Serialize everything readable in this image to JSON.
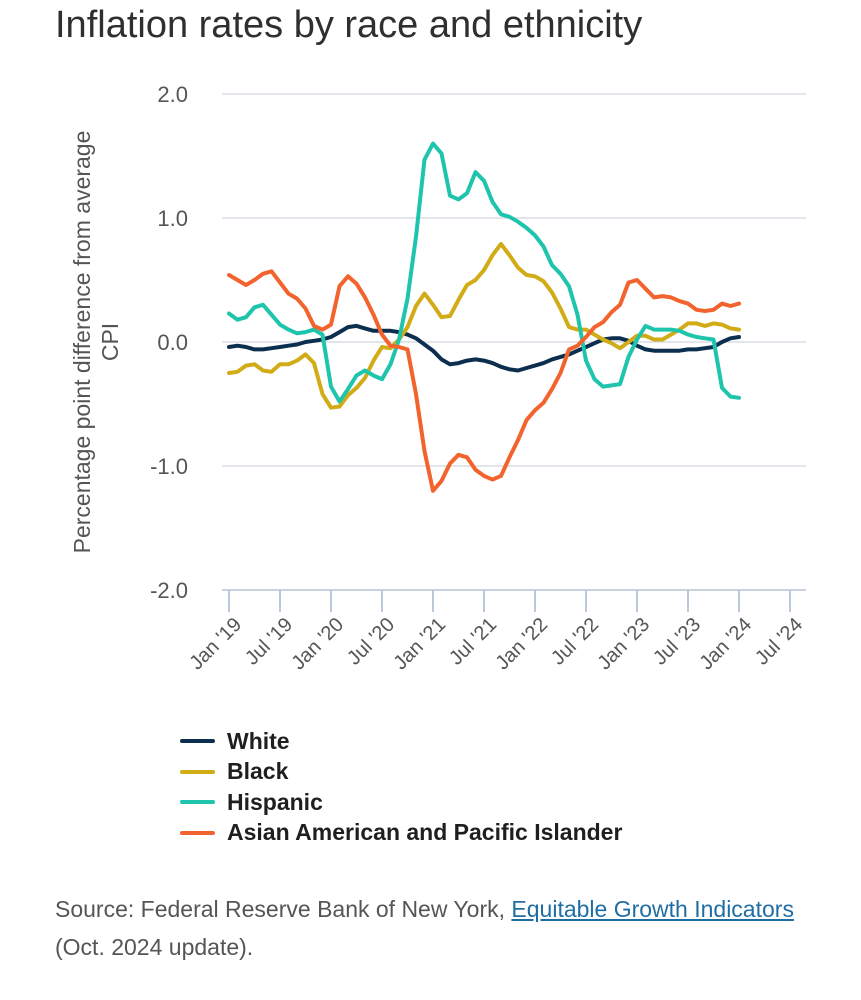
{
  "title": "Inflation rates by race and ethnicity",
  "chart_data": {
    "type": "line",
    "title": "Inflation rates by race and ethnicity",
    "xlabel": "",
    "ylabel": "Percentage point difference from average CPI",
    "ylim": [
      -2.0,
      2.0
    ],
    "yticks": [
      2.0,
      1.0,
      0.0,
      -1.0,
      -2.0
    ],
    "ytick_labels": [
      "2.0",
      "1.0",
      "0.0",
      "-1.0",
      "-2.0"
    ],
    "xticks": [
      "Jan '19",
      "Jul '19",
      "Jan '20",
      "Jul '20",
      "Jan '21",
      "Jul '21",
      "Jan '22",
      "Jul '22",
      "Jan '23",
      "Jul '23",
      "Jan '24",
      "Jul '24"
    ],
    "x_start": "Jan 2019",
    "x_end": "Sep 2024",
    "x_step": "monthly",
    "grid": true,
    "series": [
      {
        "name": "White",
        "color": "#0d2f4f",
        "values": [
          -0.04,
          -0.03,
          -0.04,
          -0.06,
          -0.06,
          -0.05,
          -0.04,
          -0.03,
          -0.02,
          0.0,
          0.01,
          0.02,
          0.04,
          0.08,
          0.12,
          0.13,
          0.11,
          0.09,
          0.09,
          0.09,
          0.08,
          0.06,
          0.03,
          -0.02,
          -0.07,
          -0.14,
          -0.18,
          -0.17,
          -0.15,
          -0.14,
          -0.15,
          -0.17,
          -0.2,
          -0.22,
          -0.23,
          -0.21,
          -0.19,
          -0.17,
          -0.14,
          -0.12,
          -0.1,
          -0.07,
          -0.04,
          -0.01,
          0.02,
          0.03,
          0.03,
          0.01,
          -0.03,
          -0.06,
          -0.07,
          -0.07,
          -0.07,
          -0.07,
          -0.06,
          -0.06,
          -0.05,
          -0.04,
          0.0,
          0.03,
          0.04
        ]
      },
      {
        "name": "Black",
        "color": "#d1ac17",
        "values": [
          -0.25,
          -0.24,
          -0.19,
          -0.18,
          -0.23,
          -0.24,
          -0.18,
          -0.18,
          -0.15,
          -0.1,
          -0.17,
          -0.42,
          -0.53,
          -0.52,
          -0.43,
          -0.37,
          -0.29,
          -0.15,
          -0.04,
          -0.05,
          0.02,
          0.12,
          0.29,
          0.39,
          0.3,
          0.2,
          0.21,
          0.34,
          0.46,
          0.5,
          0.58,
          0.7,
          0.79,
          0.7,
          0.6,
          0.54,
          0.53,
          0.49,
          0.4,
          0.27,
          0.12,
          0.1,
          0.1,
          0.06,
          0.02,
          -0.01,
          -0.05,
          0.0,
          0.05,
          0.05,
          0.02,
          0.02,
          0.06,
          0.1,
          0.15,
          0.15,
          0.13,
          0.15,
          0.14,
          0.11,
          0.1
        ]
      },
      {
        "name": "Hispanic",
        "color": "#1fc4ad",
        "values": [
          0.23,
          0.18,
          0.2,
          0.28,
          0.3,
          0.22,
          0.14,
          0.1,
          0.07,
          0.08,
          0.1,
          0.06,
          -0.36,
          -0.48,
          -0.38,
          -0.27,
          -0.23,
          -0.27,
          -0.3,
          -0.18,
          0.02,
          0.35,
          0.85,
          1.47,
          1.6,
          1.52,
          1.18,
          1.15,
          1.2,
          1.37,
          1.3,
          1.13,
          1.03,
          1.01,
          0.97,
          0.92,
          0.86,
          0.77,
          0.62,
          0.55,
          0.45,
          0.22,
          -0.15,
          -0.3,
          -0.36,
          -0.35,
          -0.34,
          -0.12,
          0.02,
          0.13,
          0.1,
          0.1,
          0.1,
          0.09,
          0.06,
          0.04,
          0.03,
          0.02,
          -0.37,
          -0.44,
          -0.45
        ]
      },
      {
        "name": "Asian American and Pacific Islander",
        "color": "#f2632d",
        "values": [
          0.54,
          0.5,
          0.46,
          0.5,
          0.55,
          0.57,
          0.48,
          0.39,
          0.35,
          0.27,
          0.13,
          0.1,
          0.14,
          0.45,
          0.53,
          0.47,
          0.36,
          0.22,
          0.06,
          -0.03,
          -0.04,
          -0.06,
          -0.42,
          -0.88,
          -1.2,
          -1.12,
          -0.98,
          -0.91,
          -0.93,
          -1.03,
          -1.08,
          -1.11,
          -1.08,
          -0.93,
          -0.79,
          -0.63,
          -0.55,
          -0.49,
          -0.38,
          -0.25,
          -0.06,
          -0.03,
          0.04,
          0.12,
          0.16,
          0.24,
          0.3,
          0.48,
          0.5,
          0.43,
          0.36,
          0.37,
          0.36,
          0.33,
          0.31,
          0.26,
          0.25,
          0.26,
          0.31,
          0.29,
          0.31
        ]
      }
    ],
    "legend_position": "bottom-left"
  },
  "legend": [
    {
      "label": "White",
      "color": "#0d2f4f"
    },
    {
      "label": "Black",
      "color": "#d1ac17"
    },
    {
      "label": "Hispanic",
      "color": "#1fc4ad"
    },
    {
      "label": "Asian American and Pacific Islander",
      "color": "#f2632d"
    }
  ],
  "source": {
    "prefix": "Source: Federal Reserve Bank of New York, ",
    "link_text": "Equitable Growth Indicators",
    "suffix": " (Oct. 2024 update)."
  }
}
